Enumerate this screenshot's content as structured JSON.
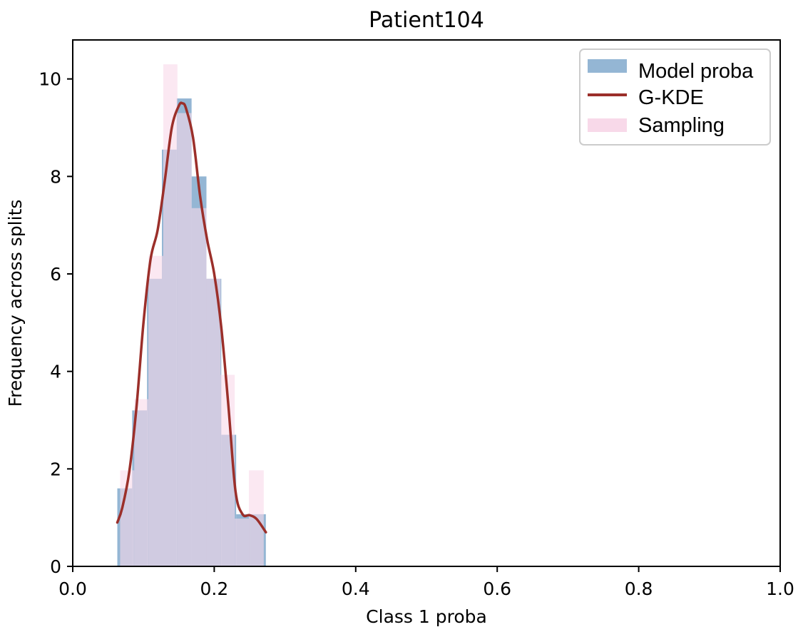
{
  "chart_data": {
    "type": "histogram",
    "title": "Patient104",
    "xlabel": "Class 1 proba",
    "ylabel": "Frequency across splits",
    "xlim": [
      0.0,
      1.0
    ],
    "ylim": [
      0,
      10.8
    ],
    "xticks": [
      "0.0",
      "0.2",
      "0.4",
      "0.6",
      "0.8",
      "1.0"
    ],
    "yticks": [
      "0",
      "2",
      "4",
      "6",
      "8",
      "10"
    ],
    "legend_position": "upper right",
    "series": [
      {
        "name": "Model proba",
        "kind": "histogram",
        "color": "#94b6d4",
        "bins": [
          {
            "x0": 0.063,
            "x1": 0.084,
            "value": 1.6
          },
          {
            "x0": 0.084,
            "x1": 0.105,
            "value": 3.2
          },
          {
            "x0": 0.105,
            "x1": 0.126,
            "value": 5.9
          },
          {
            "x0": 0.126,
            "x1": 0.147,
            "value": 8.55
          },
          {
            "x0": 0.147,
            "x1": 0.168,
            "value": 9.6
          },
          {
            "x0": 0.168,
            "x1": 0.189,
            "value": 8.0
          },
          {
            "x0": 0.189,
            "x1": 0.21,
            "value": 5.9
          },
          {
            "x0": 0.21,
            "x1": 0.231,
            "value": 2.7
          },
          {
            "x0": 0.231,
            "x1": 0.252,
            "value": 1.07
          },
          {
            "x0": 0.252,
            "x1": 0.273,
            "value": 1.07
          }
        ]
      },
      {
        "name": "G-KDE",
        "kind": "line",
        "color": "#9b2f2a",
        "x": [
          0.063,
          0.07,
          0.08,
          0.09,
          0.1,
          0.11,
          0.12,
          0.13,
          0.14,
          0.15,
          0.155,
          0.16,
          0.17,
          0.18,
          0.19,
          0.2,
          0.21,
          0.22,
          0.23,
          0.24,
          0.25,
          0.26,
          0.273
        ],
        "y": [
          0.9,
          1.2,
          1.95,
          3.25,
          5.0,
          6.3,
          6.9,
          7.9,
          9.0,
          9.45,
          9.5,
          9.4,
          8.8,
          7.6,
          6.7,
          6.0,
          4.9,
          3.3,
          1.55,
          1.07,
          1.05,
          0.97,
          0.7
        ]
      },
      {
        "name": "Sampling",
        "kind": "histogram",
        "color": "#f8d9e9",
        "bins": [
          {
            "x0": 0.067,
            "x1": 0.087,
            "value": 1.97
          },
          {
            "x0": 0.087,
            "x1": 0.107,
            "value": 3.43
          },
          {
            "x0": 0.107,
            "x1": 0.128,
            "value": 6.37
          },
          {
            "x0": 0.128,
            "x1": 0.148,
            "value": 10.3
          },
          {
            "x0": 0.148,
            "x1": 0.168,
            "value": 9.3
          },
          {
            "x0": 0.168,
            "x1": 0.189,
            "value": 7.35
          },
          {
            "x0": 0.189,
            "x1": 0.209,
            "value": 5.9
          },
          {
            "x0": 0.209,
            "x1": 0.229,
            "value": 3.93
          },
          {
            "x0": 0.229,
            "x1": 0.249,
            "value": 0.98
          },
          {
            "x0": 0.249,
            "x1": 0.27,
            "value": 1.97
          }
        ]
      }
    ]
  }
}
